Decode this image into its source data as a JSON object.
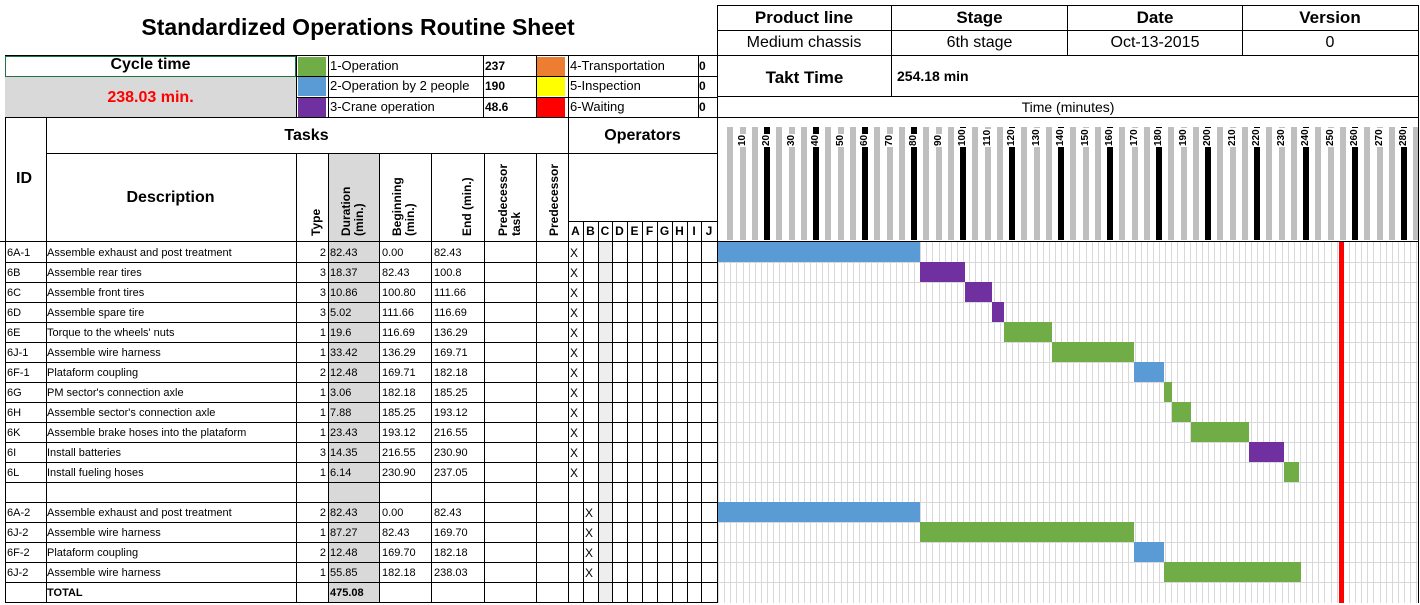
{
  "sheet": {
    "title": "Standardized Operations Routine Sheet",
    "product_line_label": "Product line",
    "product_line": "Medium chassis",
    "stage_label": "Stage",
    "stage": "6th stage",
    "date_label": "Date",
    "date": "Oct-13-2015",
    "version_label": "Version",
    "version": "0",
    "cycle_time_label": "Cycle time",
    "cycle_time": "238.03 min.",
    "takt_label": "Takt Time",
    "takt_value": "254.18 min",
    "time_axis_label": "Time (minutes)",
    "takt_minutes": 254.18
  },
  "legend": [
    {
      "label": "1-Operation",
      "value": "237",
      "color": "#70ad47"
    },
    {
      "label": "2-Operation by 2 people",
      "value": "190",
      "color": "#5b9bd5"
    },
    {
      "label": "3-Crane operation",
      "value": "48.6",
      "color": "#7030a0"
    },
    {
      "label": "4-Transportation",
      "value": "0",
      "color": "#ed7d31"
    },
    {
      "label": "5-Inspection",
      "value": "0",
      "color": "#ffff00"
    },
    {
      "label": "6-Waiting",
      "value": "0",
      "color": "#ff0000"
    }
  ],
  "columns": {
    "id": "ID",
    "tasks": "Tasks",
    "description": "Description",
    "type": "Type",
    "duration": "Duration (min.)",
    "beginning": "Beginning (min.)",
    "end": "End (min.)",
    "pred_task": "Predecessor task",
    "predecessor": "Predecessor",
    "operators": "Operators",
    "operator_letters": [
      "A",
      "B",
      "C",
      "D",
      "E",
      "F",
      "G",
      "H",
      "I",
      "J"
    ]
  },
  "axis_ticks": [
    "10",
    "20",
    "30",
    "40",
    "50",
    "60",
    "70",
    "80",
    "90",
    "100",
    "110",
    "120",
    "130",
    "140",
    "150",
    "160",
    "170",
    "180",
    "190",
    "200",
    "210",
    "220",
    "230",
    "240",
    "250",
    "260",
    "270",
    "280"
  ],
  "rows": [
    {
      "id": "6A-1",
      "desc": "Assemble exhaust and post treatment",
      "type": "2",
      "dur": "82.43",
      "begin": "0.00",
      "end": "82.43",
      "op": 0,
      "b": 0,
      "d": 82.43
    },
    {
      "id": "6B",
      "desc": "Assemble rear tires",
      "type": "3",
      "dur": "18.37",
      "begin": "82.43",
      "end": "100.8",
      "op": 0,
      "b": 82.43,
      "d": 18.37
    },
    {
      "id": "6C",
      "desc": "Assemble front tires",
      "type": "3",
      "dur": "10.86",
      "begin": "100.80",
      "end": "111.66",
      "op": 0,
      "b": 100.8,
      "d": 10.86
    },
    {
      "id": "6D",
      "desc": "Assemble spare tire",
      "type": "3",
      "dur": "5.02",
      "begin": "111.66",
      "end": "116.69",
      "op": 0,
      "b": 111.66,
      "d": 5.02
    },
    {
      "id": "6E",
      "desc": "Torque to the wheels' nuts",
      "type": "1",
      "dur": "19.6",
      "begin": "116.69",
      "end": "136.29",
      "op": 0,
      "b": 116.69,
      "d": 19.6
    },
    {
      "id": "6J-1",
      "desc": "Assemble wire harness",
      "type": "1",
      "dur": "33.42",
      "begin": "136.29",
      "end": "169.71",
      "op": 0,
      "b": 136.29,
      "d": 33.42
    },
    {
      "id": "6F-1",
      "desc": "Plataform coupling",
      "type": "2",
      "dur": "12.48",
      "begin": "169.71",
      "end": "182.18",
      "op": 0,
      "b": 169.71,
      "d": 12.48
    },
    {
      "id": "6G",
      "desc": "PM sector's connection axle",
      "type": "1",
      "dur": "3.06",
      "begin": "182.18",
      "end": "185.25",
      "op": 0,
      "b": 182.18,
      "d": 3.06
    },
    {
      "id": "6H",
      "desc": "Assemble sector's connection axle",
      "type": "1",
      "dur": "7.88",
      "begin": "185.25",
      "end": "193.12",
      "op": 0,
      "b": 185.25,
      "d": 7.88
    },
    {
      "id": "6K",
      "desc": "Assemble brake hoses into the plataform",
      "type": "1",
      "dur": "23.43",
      "begin": "193.12",
      "end": "216.55",
      "op": 0,
      "b": 193.12,
      "d": 23.43
    },
    {
      "id": "6I",
      "desc": "Install batteries",
      "type": "3",
      "dur": "14.35",
      "begin": "216.55",
      "end": "230.90",
      "op": 0,
      "b": 216.55,
      "d": 14.35
    },
    {
      "id": "6L",
      "desc": "Install fueling hoses",
      "type": "1",
      "dur": "6.14",
      "begin": "230.90",
      "end": "237.05",
      "op": 0,
      "b": 230.9,
      "d": 6.14
    },
    null,
    {
      "id": "6A-2",
      "desc": "Assemble exhaust and post treatment",
      "type": "2",
      "dur": "82.43",
      "begin": "0.00",
      "end": "82.43",
      "op": 1,
      "b": 0,
      "d": 82.43
    },
    {
      "id": "6J-2",
      "desc": "Assemble wire harness",
      "type": "1",
      "dur": "87.27",
      "begin": "82.43",
      "end": "169.70",
      "op": 1,
      "b": 82.43,
      "d": 87.27
    },
    {
      "id": "6F-2",
      "desc": "Plataform coupling",
      "type": "2",
      "dur": "12.48",
      "begin": "169.70",
      "end": "182.18",
      "op": 1,
      "b": 169.7,
      "d": 12.48
    },
    {
      "id": "6J-2",
      "desc": "Assemble wire harness",
      "type": "1",
      "dur": "55.85",
      "begin": "182.18",
      "end": "238.03",
      "op": 1,
      "b": 182.18,
      "d": 55.85
    }
  ],
  "total_label": "TOTAL",
  "total_duration": "475.08",
  "mark": "X"
}
